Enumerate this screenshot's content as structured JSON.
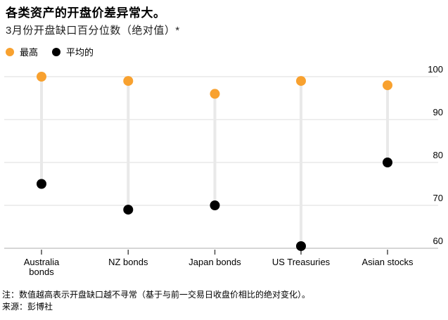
{
  "header": {
    "title": "各类资产的开盘价差异常大。",
    "subtitle": "3月份开盘缺口百分位数（绝对值）*"
  },
  "legend": {
    "items": [
      {
        "label": "最高",
        "color": "#F8A12F"
      },
      {
        "label": "平均的",
        "color": "#000000"
      }
    ]
  },
  "chart_data": {
    "type": "scatter",
    "subtype": "dumbbell-dot-plot",
    "categories": [
      "Australia\nbonds",
      "NZ bonds",
      "Japan bonds",
      "US Treasuries",
      "Asian stocks"
    ],
    "series": [
      {
        "name": "最高",
        "color": "#F8A12F",
        "values": [
          100,
          99,
          96,
          99,
          98
        ]
      },
      {
        "name": "平均的",
        "color": "#000000",
        "values": [
          75,
          69,
          70,
          60.5,
          80
        ]
      }
    ],
    "ylim": [
      60,
      100
    ],
    "yticks": [
      100,
      90,
      80,
      70,
      60
    ],
    "y_axis_side": "right",
    "grid": "horizontal",
    "legend_position": "top-left",
    "connector_color": "#e9e9e9",
    "gridline_color": "#dedede",
    "tick_color": "#4a4a4a"
  },
  "footer": {
    "note": "注：数值越高表示开盘缺口越不寻常（基于与前一交易日收盘价相比的绝对变化）。",
    "source": "来源：彭博社"
  }
}
